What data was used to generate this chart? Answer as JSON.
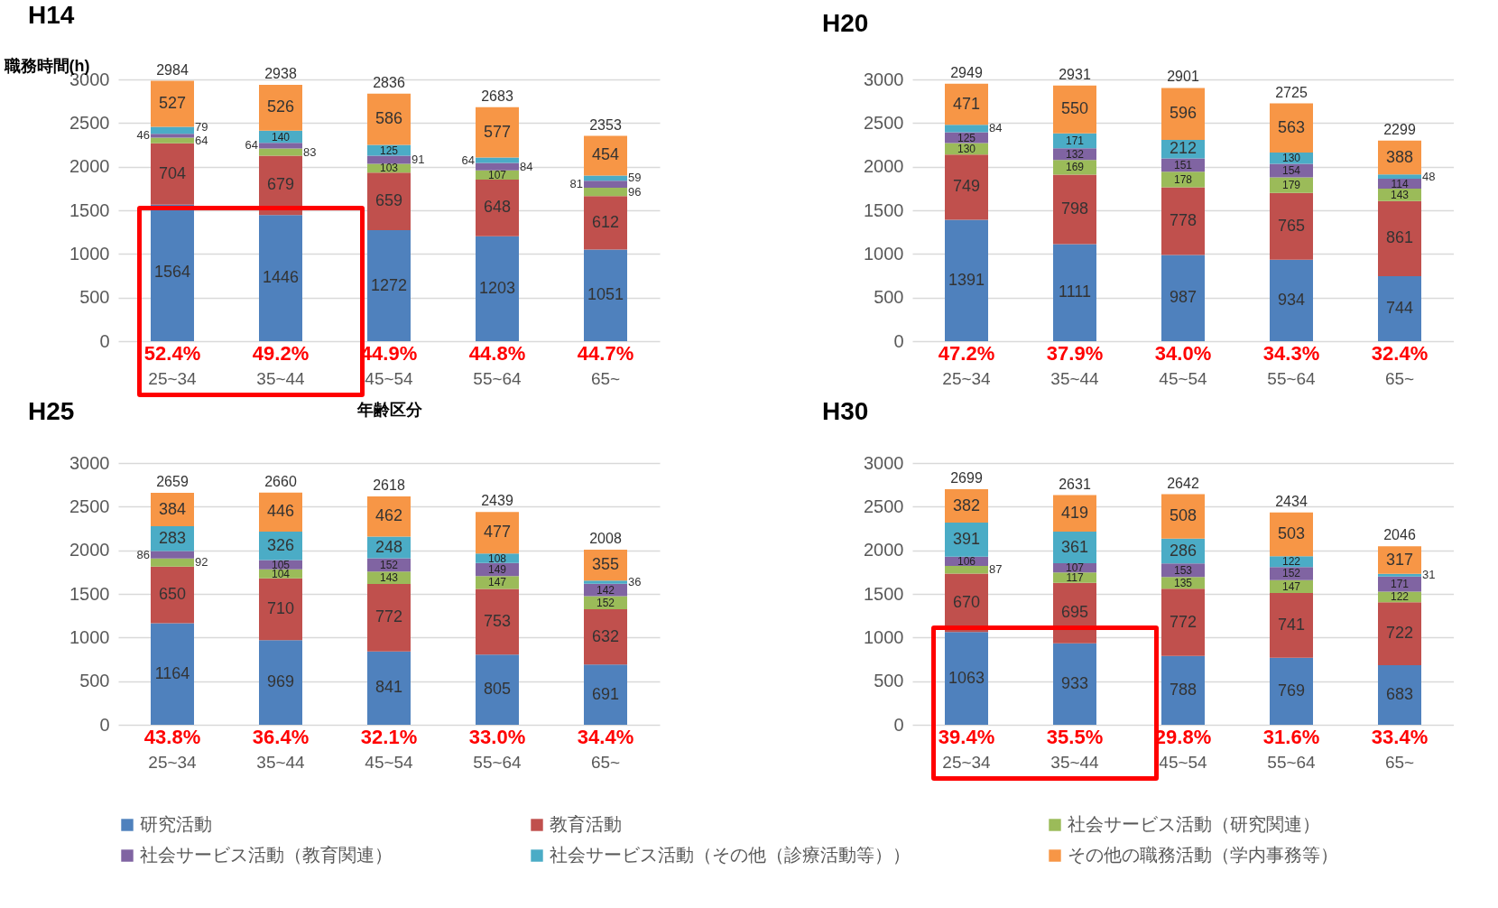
{
  "chart_data": [
    {
      "type": "bar",
      "title": "H14",
      "ylabel": "職務時間(h)",
      "xlabel": "年齢区分",
      "categories": [
        "25~34",
        "35~44",
        "45~54",
        "55~64",
        "65~"
      ],
      "stacked": true,
      "data_labels": true,
      "grid": "y",
      "legend": "bottom",
      "ylim": [
        0,
        3000
      ],
      "yticks": [
        0,
        500,
        1000,
        1500,
        2000,
        2500,
        3000
      ],
      "series": [
        {
          "name": "研究活動",
          "color": "#4f81bd",
          "values": [
            1564,
            1446,
            1272,
            1203,
            1051
          ]
        },
        {
          "name": "教育活動",
          "color": "#c0504d",
          "values": [
            704,
            679,
            659,
            648,
            612
          ]
        },
        {
          "name": "社会サービス活動（研究関連）",
          "color": "#9bbb59",
          "values": [
            64,
            83,
            103,
            107,
            96
          ]
        },
        {
          "name": "社会サービス活動（教育関連）",
          "color": "#8064a2",
          "values": [
            46,
            64,
            91,
            84,
            81
          ]
        },
        {
          "name": "社会サービス活動（その他（診療活動等））",
          "color": "#4bacc6",
          "values": [
            79,
            140,
            125,
            64,
            59
          ]
        },
        {
          "name": "その他の職務活動（学内事務等）",
          "color": "#f79646",
          "values": [
            527,
            526,
            586,
            577,
            454
          ]
        }
      ],
      "totals": [
        "2984",
        "2938",
        "2836",
        "2683",
        "2353"
      ],
      "annotations": [
        {
          "text": "52.4%",
          "x": "25~34",
          "y": 0
        },
        {
          "text": "49.2%",
          "x": "35~44",
          "y": 0
        },
        {
          "text": "44.9%",
          "x": "45~54",
          "y": 0
        },
        {
          "text": "44.8%",
          "x": "55~64",
          "y": 0
        },
        {
          "text": "44.7%",
          "x": "65~",
          "y": 0
        }
      ]
    },
    {
      "type": "bar",
      "title": "H20",
      "categories": [
        "25~34",
        "35~44",
        "45~54",
        "55~64",
        "65~"
      ],
      "stacked": true,
      "data_labels": true,
      "grid": "y",
      "legend": "bottom",
      "ylim": [
        0,
        3000
      ],
      "yticks": [
        0,
        500,
        1000,
        1500,
        2000,
        2500,
        3000
      ],
      "series": [
        {
          "name": "研究活動",
          "color": "#4f81bd",
          "values": [
            1391,
            1111,
            987,
            934,
            744
          ]
        },
        {
          "name": "教育活動",
          "color": "#c0504d",
          "values": [
            749,
            798,
            778,
            765,
            861
          ]
        },
        {
          "name": "社会サービス活動（研究関連）",
          "color": "#9bbb59",
          "values": [
            130,
            169,
            178,
            179,
            143
          ]
        },
        {
          "name": "社会サービス活動（教育関連）",
          "color": "#8064a2",
          "values": [
            125,
            132,
            151,
            154,
            114
          ]
        },
        {
          "name": "社会サービス活動（その他（診療活動等））",
          "color": "#4bacc6",
          "values": [
            84,
            171,
            212,
            130,
            48
          ]
        },
        {
          "name": "その他の職務活動（学内事務等）",
          "color": "#f79646",
          "values": [
            471,
            550,
            596,
            563,
            388
          ]
        }
      ],
      "totals": [
        "2949",
        "2931",
        "2901",
        "2725",
        "2299"
      ],
      "annotations": [
        {
          "text": "47.2%",
          "x": "25~34",
          "y": 0
        },
        {
          "text": "37.9%",
          "x": "35~44",
          "y": 0
        },
        {
          "text": "34.0%",
          "x": "45~54",
          "y": 0
        },
        {
          "text": "34.3%",
          "x": "55~64",
          "y": 0
        },
        {
          "text": "32.4%",
          "x": "65~",
          "y": 0
        }
      ]
    },
    {
      "type": "bar",
      "title": "H25",
      "categories": [
        "25~34",
        "35~44",
        "45~54",
        "55~64",
        "65~"
      ],
      "stacked": true,
      "data_labels": true,
      "grid": "y",
      "legend": "bottom",
      "ylim": [
        0,
        3000
      ],
      "yticks": [
        0,
        500,
        1000,
        1500,
        2000,
        2500,
        3000
      ],
      "series": [
        {
          "name": "研究活動",
          "color": "#4f81bd",
          "values": [
            1164,
            969,
            841,
            805,
            691
          ]
        },
        {
          "name": "教育活動",
          "color": "#c0504d",
          "values": [
            650,
            710,
            772,
            753,
            632
          ]
        },
        {
          "name": "社会サービス活動（研究関連）",
          "color": "#9bbb59",
          "values": [
            92,
            104,
            143,
            147,
            152
          ]
        },
        {
          "name": "社会サービス活動（教育関連）",
          "color": "#8064a2",
          "values": [
            86,
            105,
            152,
            149,
            142
          ]
        },
        {
          "name": "社会サービス活動（その他（診療活動等））",
          "color": "#4bacc6",
          "values": [
            283,
            326,
            248,
            108,
            36
          ]
        },
        {
          "name": "その他の職務活動（学内事務等）",
          "color": "#f79646",
          "values": [
            384,
            446,
            462,
            477,
            355
          ]
        }
      ],
      "totals": [
        "2659",
        "2660",
        "2618",
        "2439",
        "2008"
      ],
      "annotations": [
        {
          "text": "43.8%",
          "x": "25~34",
          "y": 0
        },
        {
          "text": "36.4%",
          "x": "35~44",
          "y": 0
        },
        {
          "text": "32.1%",
          "x": "45~54",
          "y": 0
        },
        {
          "text": "33.0%",
          "x": "55~64",
          "y": 0
        },
        {
          "text": "34.4%",
          "x": "65~",
          "y": 0
        }
      ]
    },
    {
      "type": "bar",
      "title": "H30",
      "categories": [
        "25~34",
        "35~44",
        "45~54",
        "55~64",
        "65~"
      ],
      "stacked": true,
      "data_labels": true,
      "grid": "y",
      "legend": "bottom",
      "ylim": [
        0,
        3000
      ],
      "yticks": [
        0,
        500,
        1000,
        1500,
        2000,
        2500,
        3000
      ],
      "series": [
        {
          "name": "研究活動",
          "color": "#4f81bd",
          "values": [
            1063,
            933,
            788,
            769,
            683
          ]
        },
        {
          "name": "教育活動",
          "color": "#c0504d",
          "values": [
            670,
            695,
            772,
            741,
            722
          ]
        },
        {
          "name": "社会サービス活動（研究関連）",
          "color": "#9bbb59",
          "values": [
            87,
            117,
            135,
            147,
            122
          ]
        },
        {
          "name": "社会サービス活動（教育関連）",
          "color": "#8064a2",
          "values": [
            106,
            107,
            153,
            152,
            171
          ]
        },
        {
          "name": "社会サービス活動（その他（診療活動等））",
          "color": "#4bacc6",
          "values": [
            391,
            361,
            286,
            122,
            31
          ]
        },
        {
          "name": "その他の職務活動（学内事務等）",
          "color": "#f79646",
          "values": [
            382,
            419,
            508,
            503,
            317
          ]
        }
      ],
      "totals": [
        "2699",
        "2631",
        "2642",
        "2434",
        "2046"
      ],
      "annotations": [
        {
          "text": "39.4%",
          "x": "25~34",
          "y": 0
        },
        {
          "text": "35.5%",
          "x": "35~44",
          "y": 0
        },
        {
          "text": "29.8%",
          "x": "45~54",
          "y": 0
        },
        {
          "text": "31.6%",
          "x": "55~64",
          "y": 0
        },
        {
          "text": "33.4%",
          "x": "65~",
          "y": 0
        }
      ]
    }
  ]
}
